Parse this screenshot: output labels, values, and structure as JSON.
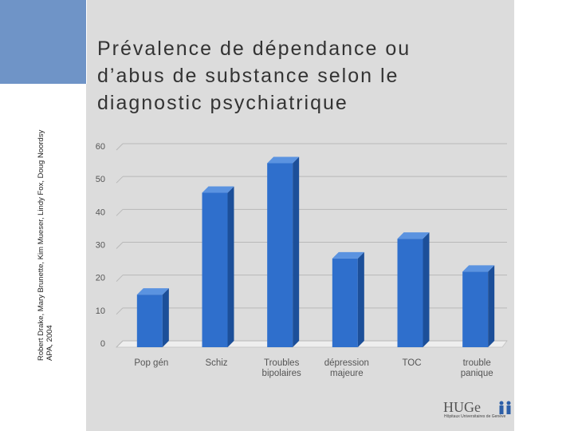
{
  "slide": {
    "title": "Prévalence de dépendance ou\nd’abus de substance selon le\ndiagnostic psychiatrique",
    "credit_line1": "Robert Drake, Mary Brunette, Kim Mueser, Lindy Fox, Doug Noordsy",
    "credit_line2": "APA, 2004"
  },
  "logo": {
    "text": "HUGe",
    "subtitle": "Hôpitaux Universitaires de Genève"
  },
  "colors": {
    "bar": "#2f6fcc",
    "bar_top": "#5b93e0",
    "bar_side": "#1c4f99",
    "panel": "#dcdcdc",
    "accent": "#6f94c7"
  },
  "chart_data": {
    "type": "bar",
    "categories": [
      "Pop gén",
      "Schiz",
      "Troubles bipolaires",
      "dépression majeure",
      "TOC",
      "trouble panique"
    ],
    "category_lines": [
      [
        "Pop gén"
      ],
      [
        "Schiz"
      ],
      [
        "Troubles",
        "bipolaires"
      ],
      [
        "dépression",
        "majeure"
      ],
      [
        "TOC"
      ],
      [
        "trouble",
        "panique"
      ]
    ],
    "values": [
      16,
      47,
      56,
      27,
      33,
      23
    ],
    "ylim": [
      0,
      60
    ],
    "yticks": [
      "0",
      "10",
      "20",
      "30",
      "40",
      "50",
      "60"
    ],
    "grid": true,
    "title": "",
    "xlabel": "",
    "ylabel": ""
  }
}
